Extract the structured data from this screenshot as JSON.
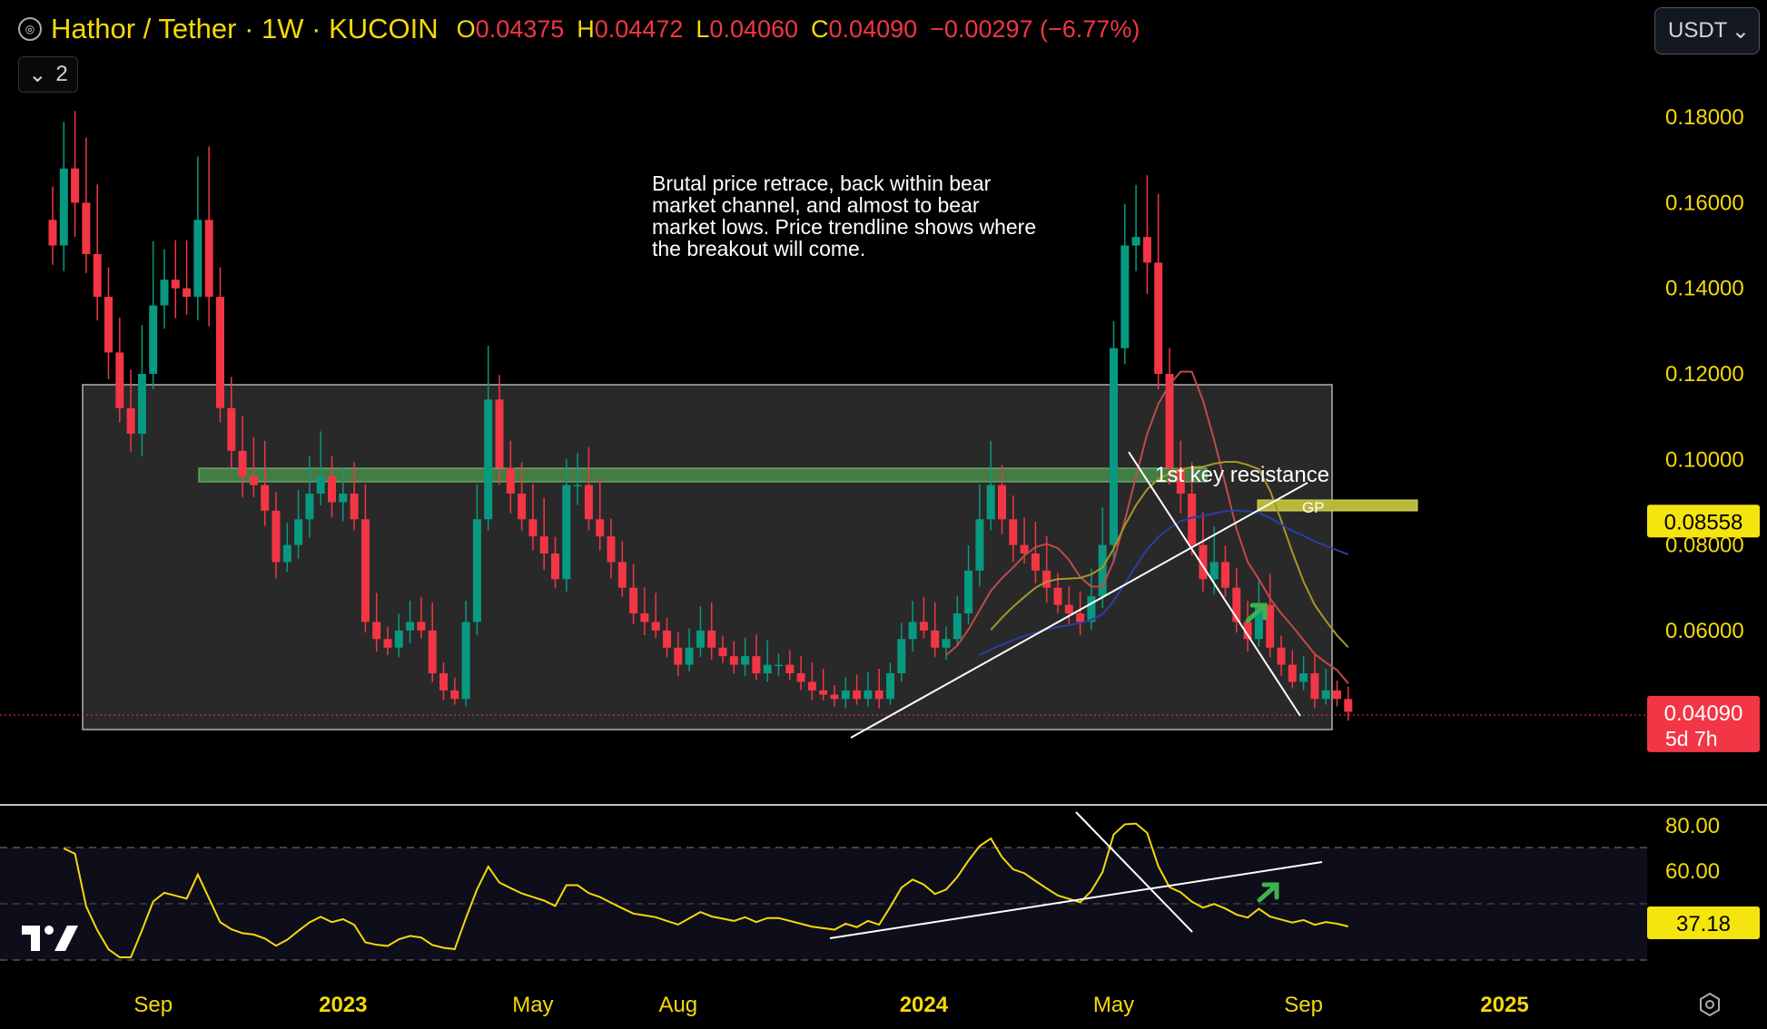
{
  "header": {
    "title": "Hathor / Tether · 1W · KUCOIN",
    "ohlc": [
      {
        "k": "O",
        "v": "0.04375"
      },
      {
        "k": "H",
        "v": "0.04472"
      },
      {
        "k": "L",
        "v": "0.04060"
      },
      {
        "k": "C",
        "v": "0.04090"
      }
    ],
    "change": "−0.00297 (−6.77%)",
    "collapse_count": "2"
  },
  "currency": {
    "label": "USDT"
  },
  "annotation": "Brutal price retrace, back within bear market channel, and almost to bear market lows. Price trendline shows where the breakout will come.",
  "labels": {
    "resistance": "1st key resistance",
    "gp": "GP"
  },
  "colors": {
    "up": "#089981",
    "down": "#f23645",
    "accent": "#f5d90a",
    "background": "#000000"
  },
  "chart_data": {
    "type": "candlestick",
    "title": "Hathor / Tether · 1W · KUCOIN",
    "x_ticks": [
      {
        "label": "May",
        "bold": false,
        "t": -8
      },
      {
        "label": "Sep",
        "bold": false,
        "t": 9
      },
      {
        "label": "2023",
        "bold": true,
        "t": 26
      },
      {
        "label": "May",
        "bold": false,
        "t": 43
      },
      {
        "label": "Aug",
        "bold": false,
        "t": 56
      },
      {
        "label": "2024",
        "bold": true,
        "t": 78
      },
      {
        "label": "May",
        "bold": false,
        "t": 95
      },
      {
        "label": "Sep",
        "bold": false,
        "t": 112
      },
      {
        "label": "2025",
        "bold": true,
        "t": 130
      }
    ],
    "y_ticks": [
      "0.18000",
      "0.16000",
      "0.14000",
      "0.12000",
      "0.10000",
      "0.08000",
      "0.06000"
    ],
    "ylim": [
      0.036,
      0.19
    ],
    "price_badges": [
      {
        "value": "0.08558",
        "role": "indicator"
      },
      {
        "value": "0.04090",
        "sub": "5d 7h",
        "role": "last-price"
      }
    ],
    "closes": [
      0.15,
      0.168,
      0.16,
      0.148,
      0.138,
      0.125,
      0.112,
      0.106,
      0.12,
      0.136,
      0.142,
      0.14,
      0.138,
      0.156,
      0.138,
      0.112,
      0.102,
      0.096,
      0.094,
      0.088,
      0.076,
      0.08,
      0.086,
      0.092,
      0.096,
      0.09,
      0.092,
      0.086,
      0.062,
      0.058,
      0.056,
      0.06,
      0.062,
      0.06,
      0.05,
      0.046,
      0.044,
      0.062,
      0.086,
      0.114,
      0.098,
      0.092,
      0.086,
      0.082,
      0.078,
      0.072,
      0.094,
      0.094,
      0.086,
      0.082,
      0.076,
      0.07,
      0.064,
      0.062,
      0.06,
      0.056,
      0.052,
      0.056,
      0.06,
      0.056,
      0.054,
      0.052,
      0.054,
      0.05,
      0.052,
      0.052,
      0.05,
      0.048,
      0.046,
      0.045,
      0.044,
      0.046,
      0.044,
      0.046,
      0.044,
      0.05,
      0.058,
      0.062,
      0.06,
      0.056,
      0.058,
      0.064,
      0.074,
      0.086,
      0.094,
      0.086,
      0.08,
      0.078,
      0.074,
      0.07,
      0.066,
      0.064,
      0.062,
      0.068,
      0.08,
      0.126,
      0.15,
      0.152,
      0.146,
      0.12,
      0.098,
      0.092,
      0.08,
      0.072,
      0.076,
      0.07,
      0.062,
      0.058,
      0.066,
      0.056,
      0.052,
      0.048,
      0.05,
      0.044,
      0.046,
      0.044,
      0.041
    ],
    "rsi": {
      "y_ticks": [
        "80.00",
        "60.00"
      ],
      "current": "37.18",
      "ylim": [
        20,
        86
      ]
    }
  }
}
